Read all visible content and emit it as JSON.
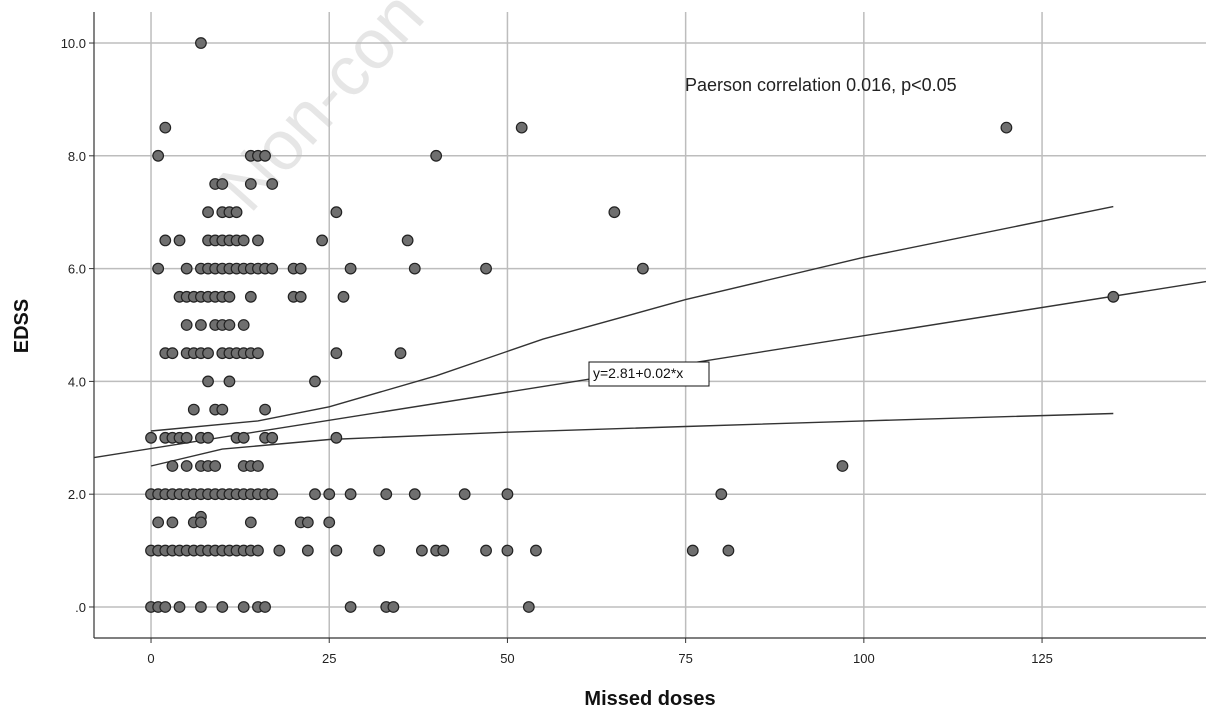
{
  "chart_data": {
    "type": "scatter",
    "xlabel": "Missed doses",
    "ylabel": "EDSS",
    "xlim": [
      -8,
      148
    ],
    "ylim": [
      -0.55,
      10.55
    ],
    "x_ticks": [
      0,
      25,
      50,
      75,
      100,
      125
    ],
    "x_tick_labels": [
      "0",
      "25",
      "50",
      "75",
      "100",
      "125"
    ],
    "y_ticks": [
      0,
      2,
      4,
      6,
      8,
      10
    ],
    "y_tick_labels": [
      ".0",
      "2.0",
      "4.0",
      "6.0",
      "8.0",
      "10.0"
    ],
    "grid": true,
    "watermark": "Non-con",
    "annotation": "Paerson correlation 0.016, p<0.05",
    "fit_equation": "y=2.81+0.02*x",
    "fit_line": {
      "intercept": 2.81,
      "slope": 0.02
    },
    "ci_upper": [
      [
        0,
        3.12
      ],
      [
        15,
        3.3
      ],
      [
        25,
        3.55
      ],
      [
        40,
        4.1
      ],
      [
        55,
        4.75
      ],
      [
        75,
        5.45
      ],
      [
        100,
        6.2
      ],
      [
        135,
        7.1
      ]
    ],
    "ci_lower": [
      [
        0,
        2.5
      ],
      [
        10,
        2.8
      ],
      [
        25,
        2.97
      ],
      [
        50,
        3.1
      ],
      [
        75,
        3.2
      ],
      [
        100,
        3.3
      ],
      [
        135,
        3.43
      ]
    ],
    "colors": {
      "marker_fill": "#6f6f6f",
      "marker_stroke": "#222222",
      "grid": "#bdbdbd",
      "axis": "#333333",
      "line": "#333333"
    },
    "points": [
      [
        7,
        10
      ],
      [
        2,
        8.5
      ],
      [
        52,
        8.5
      ],
      [
        120,
        8.5
      ],
      [
        1,
        8
      ],
      [
        14,
        8
      ],
      [
        15,
        8
      ],
      [
        16,
        8
      ],
      [
        40,
        8
      ],
      [
        9,
        7.5
      ],
      [
        10,
        7.5
      ],
      [
        14,
        7.5
      ],
      [
        17,
        7.5
      ],
      [
        8,
        7
      ],
      [
        10,
        7
      ],
      [
        11,
        7
      ],
      [
        12,
        7
      ],
      [
        26,
        7
      ],
      [
        65,
        7
      ],
      [
        2,
        6.5
      ],
      [
        4,
        6.5
      ],
      [
        8,
        6.5
      ],
      [
        9,
        6.5
      ],
      [
        10,
        6.5
      ],
      [
        11,
        6.5
      ],
      [
        12,
        6.5
      ],
      [
        13,
        6.5
      ],
      [
        15,
        6.5
      ],
      [
        24,
        6.5
      ],
      [
        36,
        6.5
      ],
      [
        1,
        6
      ],
      [
        5,
        6
      ],
      [
        7,
        6
      ],
      [
        8,
        6
      ],
      [
        9,
        6
      ],
      [
        10,
        6
      ],
      [
        11,
        6
      ],
      [
        12,
        6
      ],
      [
        13,
        6
      ],
      [
        14,
        6
      ],
      [
        15,
        6
      ],
      [
        16,
        6
      ],
      [
        17,
        6
      ],
      [
        20,
        6
      ],
      [
        21,
        6
      ],
      [
        28,
        6
      ],
      [
        37,
        6
      ],
      [
        47,
        6
      ],
      [
        69,
        6
      ],
      [
        4,
        5.5
      ],
      [
        5,
        5.5
      ],
      [
        6,
        5.5
      ],
      [
        7,
        5.5
      ],
      [
        8,
        5.5
      ],
      [
        9,
        5.5
      ],
      [
        10,
        5.5
      ],
      [
        11,
        5.5
      ],
      [
        14,
        5.5
      ],
      [
        20,
        5.5
      ],
      [
        21,
        5.5
      ],
      [
        27,
        5.5
      ],
      [
        135,
        5.5
      ],
      [
        5,
        5
      ],
      [
        7,
        5
      ],
      [
        9,
        5
      ],
      [
        10,
        5
      ],
      [
        11,
        5
      ],
      [
        13,
        5
      ],
      [
        2,
        4.5
      ],
      [
        3,
        4.5
      ],
      [
        5,
        4.5
      ],
      [
        6,
        4.5
      ],
      [
        7,
        4.5
      ],
      [
        8,
        4.5
      ],
      [
        10,
        4.5
      ],
      [
        11,
        4.5
      ],
      [
        12,
        4.5
      ],
      [
        13,
        4.5
      ],
      [
        14,
        4.5
      ],
      [
        15,
        4.5
      ],
      [
        26,
        4.5
      ],
      [
        35,
        4.5
      ],
      [
        8,
        4
      ],
      [
        11,
        4
      ],
      [
        23,
        4
      ],
      [
        6,
        3.5
      ],
      [
        9,
        3.5
      ],
      [
        10,
        3.5
      ],
      [
        16,
        3.5
      ],
      [
        0,
        3
      ],
      [
        2,
        3
      ],
      [
        3,
        3
      ],
      [
        4,
        3
      ],
      [
        5,
        3
      ],
      [
        7,
        3
      ],
      [
        8,
        3
      ],
      [
        12,
        3
      ],
      [
        13,
        3
      ],
      [
        16,
        3
      ],
      [
        17,
        3
      ],
      [
        26,
        3
      ],
      [
        3,
        2.5
      ],
      [
        5,
        2.5
      ],
      [
        7,
        2.5
      ],
      [
        8,
        2.5
      ],
      [
        9,
        2.5
      ],
      [
        13,
        2.5
      ],
      [
        14,
        2.5
      ],
      [
        15,
        2.5
      ],
      [
        97,
        2.5
      ],
      [
        0,
        2
      ],
      [
        1,
        2
      ],
      [
        2,
        2
      ],
      [
        3,
        2
      ],
      [
        4,
        2
      ],
      [
        5,
        2
      ],
      [
        6,
        2
      ],
      [
        7,
        2
      ],
      [
        8,
        2
      ],
      [
        9,
        2
      ],
      [
        10,
        2
      ],
      [
        11,
        2
      ],
      [
        12,
        2
      ],
      [
        13,
        2
      ],
      [
        14,
        2
      ],
      [
        15,
        2
      ],
      [
        16,
        2
      ],
      [
        17,
        2
      ],
      [
        23,
        2
      ],
      [
        25,
        2
      ],
      [
        28,
        2
      ],
      [
        33,
        2
      ],
      [
        37,
        2
      ],
      [
        44,
        2
      ],
      [
        50,
        2
      ],
      [
        80,
        2
      ],
      [
        7,
        1.6
      ],
      [
        1,
        1.5
      ],
      [
        3,
        1.5
      ],
      [
        6,
        1.5
      ],
      [
        7,
        1.5
      ],
      [
        14,
        1.5
      ],
      [
        21,
        1.5
      ],
      [
        22,
        1.5
      ],
      [
        25,
        1.5
      ],
      [
        0,
        1
      ],
      [
        1,
        1
      ],
      [
        2,
        1
      ],
      [
        3,
        1
      ],
      [
        4,
        1
      ],
      [
        5,
        1
      ],
      [
        6,
        1
      ],
      [
        7,
        1
      ],
      [
        8,
        1
      ],
      [
        9,
        1
      ],
      [
        10,
        1
      ],
      [
        11,
        1
      ],
      [
        12,
        1
      ],
      [
        13,
        1
      ],
      [
        14,
        1
      ],
      [
        15,
        1
      ],
      [
        18,
        1
      ],
      [
        22,
        1
      ],
      [
        26,
        1
      ],
      [
        32,
        1
      ],
      [
        38,
        1
      ],
      [
        40,
        1
      ],
      [
        41,
        1
      ],
      [
        47,
        1
      ],
      [
        50,
        1
      ],
      [
        54,
        1
      ],
      [
        76,
        1
      ],
      [
        81,
        1
      ],
      [
        0,
        0
      ],
      [
        1,
        0
      ],
      [
        2,
        0
      ],
      [
        4,
        0
      ],
      [
        7,
        0
      ],
      [
        10,
        0
      ],
      [
        13,
        0
      ],
      [
        15,
        0
      ],
      [
        16,
        0
      ],
      [
        28,
        0
      ],
      [
        33,
        0
      ],
      [
        34,
        0
      ],
      [
        53,
        0
      ]
    ]
  }
}
